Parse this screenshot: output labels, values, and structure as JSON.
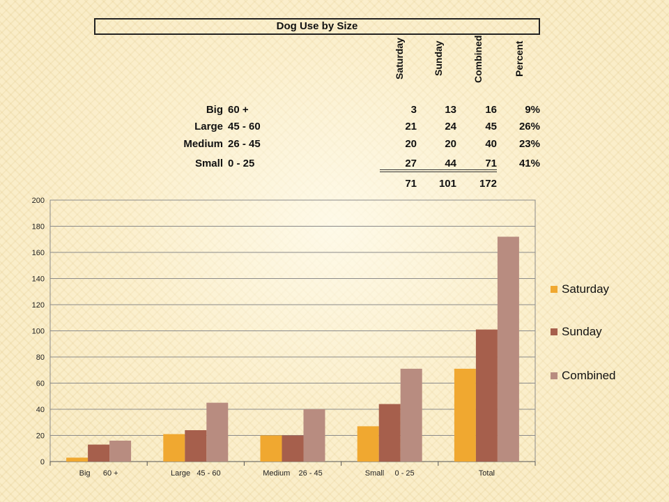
{
  "table": {
    "title": "Dog Use by Size",
    "columns": [
      "Saturday",
      "Sunday",
      "Combined",
      "Percent"
    ],
    "rows": [
      {
        "name": "Big",
        "range": "60 +",
        "saturday": "3",
        "sunday": "13",
        "combined": "16",
        "percent": "9%"
      },
      {
        "name": "Large",
        "range": "45 - 60",
        "saturday": "21",
        "sunday": "24",
        "combined": "45",
        "percent": "26%"
      },
      {
        "name": "Medium",
        "range": "26 - 45",
        "saturday": "20",
        "sunday": "20",
        "combined": "40",
        "percent": "23%"
      },
      {
        "name": "Small",
        "range": "0 - 25",
        "saturday": "27",
        "sunday": "44",
        "combined": "71",
        "percent": "41%"
      }
    ],
    "totals": {
      "saturday": "71",
      "sunday": "101",
      "combined": "172"
    }
  },
  "chart_data": {
    "type": "bar",
    "categories": [
      "Big      60 +",
      "Large   45 - 60",
      "Medium    26 - 45",
      "Small     0 - 25",
      "Total"
    ],
    "series": [
      {
        "name": "Saturday",
        "values": [
          3,
          21,
          20,
          27,
          71
        ],
        "color": "#f0a830"
      },
      {
        "name": "Sunday",
        "values": [
          13,
          24,
          20,
          44,
          101
        ],
        "color": "#a65f4c"
      },
      {
        "name": "Combined",
        "values": [
          16,
          45,
          40,
          71,
          172
        ],
        "color": "#b88c80"
      }
    ],
    "ylim": [
      0,
      200
    ],
    "yticks": [
      0,
      20,
      40,
      60,
      80,
      100,
      120,
      140,
      160,
      180,
      200
    ],
    "grid": true,
    "legend": "right"
  }
}
